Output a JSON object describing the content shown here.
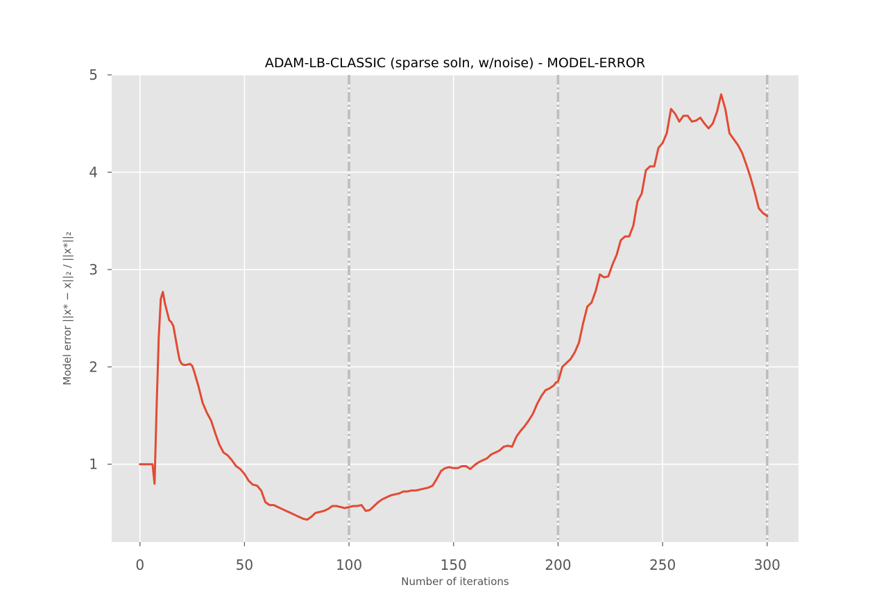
{
  "chart_data": {
    "type": "line",
    "title": "ADAM-LB-CLASSIC (sparse soln, w/noise) - MODEL-ERROR",
    "xlabel": "Number of iterations",
    "ylabel": "Model error ||x* − x||₂ / ||x*||₂",
    "xlim": [
      -13.5,
      315
    ],
    "ylim": [
      0.2,
      5.0
    ],
    "xticks": [
      0,
      50,
      100,
      150,
      200,
      250,
      300
    ],
    "yticks": [
      1,
      2,
      3,
      4,
      5
    ],
    "grid": true,
    "vlines": [
      100,
      200,
      300
    ],
    "colors": {
      "line": "#E24A33",
      "background": "#E5E5E5",
      "grid": "#FFFFFF",
      "vline": "#BDBDBD"
    },
    "series": [
      {
        "x": [
          0,
          2,
          4,
          6,
          7,
          8,
          9,
          10,
          11,
          12,
          14,
          15,
          16,
          17,
          18,
          19,
          20,
          21,
          22,
          24,
          25,
          26,
          28,
          30,
          32,
          34,
          36,
          38,
          40,
          42,
          44,
          46,
          48,
          50,
          52,
          54,
          56,
          58,
          60,
          62,
          64,
          66,
          68,
          70,
          72,
          74,
          76,
          78,
          80,
          82,
          84,
          86,
          88,
          90,
          92,
          94,
          96,
          98,
          100,
          102,
          104,
          106,
          108,
          110,
          112,
          114,
          116,
          118,
          120,
          122,
          124,
          126,
          128,
          130,
          132,
          134,
          136,
          138,
          140,
          142,
          144,
          146,
          148,
          150,
          152,
          154,
          156,
          158,
          160,
          162,
          164,
          166,
          168,
          170,
          172,
          174,
          176,
          178,
          180,
          182,
          184,
          186,
          188,
          190,
          192,
          194,
          196,
          198,
          199,
          200,
          201,
          202,
          204,
          206,
          208,
          210,
          212,
          214,
          216,
          218,
          220,
          222,
          224,
          226,
          228,
          230,
          232,
          234,
          236,
          238,
          240,
          242,
          244,
          246,
          248,
          250,
          252,
          254,
          256,
          258,
          260,
          262,
          264,
          266,
          268,
          270,
          272,
          274,
          276,
          278,
          280,
          282,
          284,
          286,
          288,
          290,
          292,
          294,
          296,
          298,
          300
        ],
        "y": [
          1.0,
          1.0,
          1.0,
          1.0,
          0.8,
          1.6,
          2.3,
          2.7,
          2.77,
          2.65,
          2.48,
          2.46,
          2.42,
          2.3,
          2.18,
          2.07,
          2.03,
          2.02,
          2.02,
          2.03,
          2.01,
          1.95,
          1.8,
          1.63,
          1.53,
          1.45,
          1.32,
          1.2,
          1.12,
          1.09,
          1.04,
          0.98,
          0.95,
          0.9,
          0.83,
          0.79,
          0.78,
          0.73,
          0.61,
          0.58,
          0.58,
          0.56,
          0.54,
          0.52,
          0.5,
          0.48,
          0.46,
          0.44,
          0.43,
          0.46,
          0.5,
          0.51,
          0.52,
          0.54,
          0.57,
          0.57,
          0.56,
          0.55,
          0.56,
          0.57,
          0.57,
          0.58,
          0.52,
          0.53,
          0.57,
          0.61,
          0.64,
          0.66,
          0.68,
          0.69,
          0.7,
          0.72,
          0.72,
          0.73,
          0.73,
          0.74,
          0.75,
          0.76,
          0.78,
          0.85,
          0.93,
          0.96,
          0.97,
          0.96,
          0.96,
          0.98,
          0.98,
          0.95,
          0.99,
          1.02,
          1.04,
          1.06,
          1.1,
          1.12,
          1.14,
          1.18,
          1.19,
          1.18,
          1.28,
          1.34,
          1.39,
          1.45,
          1.52,
          1.62,
          1.7,
          1.76,
          1.78,
          1.81,
          1.84,
          1.85,
          1.92,
          2.0,
          2.04,
          2.08,
          2.15,
          2.25,
          2.45,
          2.62,
          2.66,
          2.78,
          2.95,
          2.92,
          2.93,
          3.05,
          3.15,
          3.3,
          3.34,
          3.34,
          3.45,
          3.7,
          3.78,
          4.02,
          4.06,
          4.06,
          4.25,
          4.3,
          4.4,
          4.65,
          4.6,
          4.52,
          4.58,
          4.58,
          4.52,
          4.53,
          4.56,
          4.5,
          4.45,
          4.5,
          4.62,
          4.8,
          4.65,
          4.4,
          4.34,
          4.28,
          4.2,
          4.08,
          3.95,
          3.8,
          3.63,
          3.58,
          3.55
        ]
      }
    ]
  }
}
